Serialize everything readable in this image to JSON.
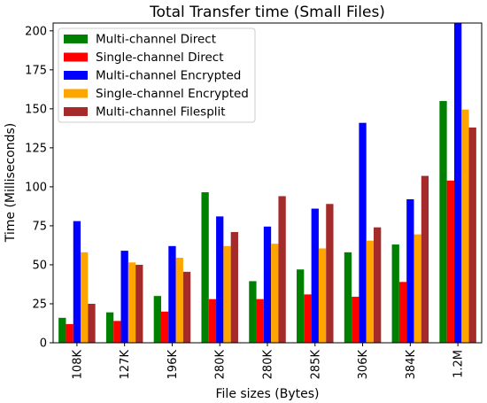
{
  "chart_data": {
    "type": "bar",
    "title": "Total Transfer time (Small Files)",
    "xlabel": "File sizes (Bytes)",
    "ylabel": "Time (Milliseconds)",
    "categories": [
      "108K",
      "127K",
      "196K",
      "280K",
      "280K",
      "285K",
      "306K",
      "384K",
      "1.2M"
    ],
    "ylim": [
      0,
      205
    ],
    "yticks": [
      "0",
      "25",
      "50",
      "75",
      "100",
      "125",
      "150",
      "175",
      "200"
    ],
    "grid": false,
    "legend_position": "top-left",
    "series": [
      {
        "name": "Multi-channel Direct",
        "color": "#008000",
        "values": [
          16,
          19.5,
          30,
          96.5,
          39.5,
          47,
          58,
          63,
          155
        ]
      },
      {
        "name": "Single-channel Direct",
        "color": "#ff0000",
        "values": [
          12,
          14,
          20,
          28,
          28,
          31,
          29.5,
          39,
          104
        ]
      },
      {
        "name": "Multi-channel Encrypted",
        "color": "#0000ff",
        "values": [
          78,
          59,
          62,
          81,
          74.5,
          86,
          141,
          92,
          210
        ]
      },
      {
        "name": "Single-channel Encrypted",
        "color": "#ffa500",
        "values": [
          58,
          51.5,
          54.5,
          62,
          63.5,
          60.5,
          65.5,
          69.5,
          149.5
        ]
      },
      {
        "name": "Multi-channel Filesplit",
        "color": "#a52a2a",
        "values": [
          25,
          50,
          45.5,
          71,
          94,
          89,
          74,
          107,
          138
        ]
      }
    ]
  }
}
